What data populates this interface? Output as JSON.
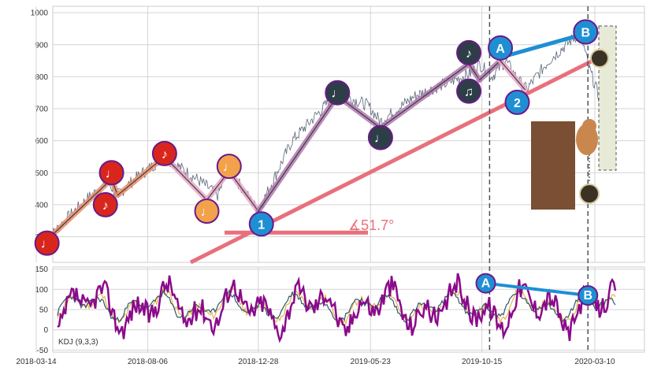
{
  "chart_data": [
    {
      "type": "line",
      "panel": "price",
      "ylim": [
        220,
        1020
      ],
      "y_ticks": [
        300,
        400,
        500,
        600,
        700,
        800,
        900,
        1000
      ],
      "grid": true,
      "price_path": [
        [
          "2018-03-28",
          290
        ],
        [
          "2018-04-20",
          350
        ],
        [
          "2018-05-20",
          420
        ],
        [
          "2018-06-15",
          470
        ],
        [
          "2018-06-28",
          430
        ],
        [
          "2018-07-20",
          480
        ],
        [
          "2018-08-28",
          550
        ],
        [
          "2018-10-15",
          470
        ],
        [
          "2018-11-05",
          430
        ],
        [
          "2018-11-20",
          510
        ],
        [
          "2018-12-28",
          380
        ],
        [
          "2019-02-10",
          600
        ],
        [
          "2019-04-10",
          750
        ],
        [
          "2019-05-20",
          710
        ],
        [
          "2019-06-05",
          660
        ],
        [
          "2019-07-20",
          740
        ],
        [
          "2019-09-30",
          810
        ],
        [
          "2019-10-12",
          840
        ],
        [
          "2019-10-28",
          800
        ],
        [
          "2019-11-15",
          850
        ],
        [
          "2019-12-01",
          790
        ],
        [
          "2019-12-12",
          760
        ],
        [
          "2020-01-10",
          850
        ],
        [
          "2020-02-20",
          940
        ],
        [
          "2020-03-02",
          830
        ],
        [
          "2020-03-15",
          740
        ],
        [
          "2020-03-22",
          580
        ]
      ],
      "pivot_markers": [
        {
          "x": "2018-03-28",
          "y": 280,
          "style": "red",
          "label": "♩"
        },
        {
          "x": "2018-06-20",
          "y": 500,
          "style": "red",
          "label": "♩"
        },
        {
          "x": "2018-06-12",
          "y": 400,
          "style": "red",
          "label": "♪"
        },
        {
          "x": "2018-08-28",
          "y": 560,
          "style": "red",
          "label": "♪"
        },
        {
          "x": "2018-10-22",
          "y": 380,
          "style": "orange",
          "label": "♩"
        },
        {
          "x": "2018-11-20",
          "y": 520,
          "style": "orange",
          "label": "♩"
        },
        {
          "x": "2019-04-10",
          "y": 750,
          "style": "dark",
          "label": "♩"
        },
        {
          "x": "2019-06-05",
          "y": 610,
          "style": "dark",
          "label": "♩"
        },
        {
          "x": "2019-09-28",
          "y": 875,
          "style": "dark",
          "label": "♪"
        },
        {
          "x": "2019-09-28",
          "y": 755,
          "style": "dark",
          "label": "♫"
        }
      ],
      "labeled_markers": [
        {
          "x": "2019-01-01",
          "y": 340,
          "label": "1"
        },
        {
          "x": "2019-11-30",
          "y": 720,
          "label": "2"
        },
        {
          "x": "2019-11-08",
          "y": 890,
          "label": "A"
        },
        {
          "x": "2020-02-27",
          "y": 940,
          "label": "B"
        }
      ],
      "trend_line": {
        "from": [
          "2018-10-01",
          220
        ],
        "to": [
          "2020-04-01",
          880
        ]
      },
      "ab_line": {
        "from": [
          "2019-11-08",
          860
        ],
        "to": [
          "2020-02-27",
          935
        ]
      },
      "angle_label": "∡51.7°",
      "vlines": [
        "2019-10-25",
        "2020-03-01"
      ]
    },
    {
      "type": "line",
      "panel": "indicator",
      "label": "KDJ (9,3,3)",
      "ylim": [
        -55,
        155
      ],
      "y_ticks": [
        -50,
        0,
        50,
        100,
        150
      ],
      "series_colors": {
        "K": "#e6b34c",
        "D": "#2f5a6b",
        "J": "#8b0a8b"
      },
      "markers": [
        {
          "x": "2019-10-20",
          "y": 115,
          "label": "A"
        },
        {
          "x": "2020-03-01",
          "y": 85,
          "label": "B"
        }
      ]
    }
  ],
  "x_ticks": [
    "2018-03-14",
    "2018-08-06",
    "2018-12-28",
    "2019-05-23",
    "2019-10-15",
    "2020-03-10"
  ],
  "x_range": [
    "2018-03-14",
    "2020-04-05"
  ],
  "colors": {
    "price": "#5a6578",
    "trend": "#e8707b",
    "ab": "#1f8fd4",
    "red": "#d9261c",
    "orange": "#f2a24a",
    "dark": "#2d3e46",
    "marker_edge": "#6a1a8a",
    "blue_marker": "#1f8fd4",
    "seg_pink": "#e8a8c8",
    "seg_salmon": "#e89070",
    "grid": "#d4d4d4"
  }
}
